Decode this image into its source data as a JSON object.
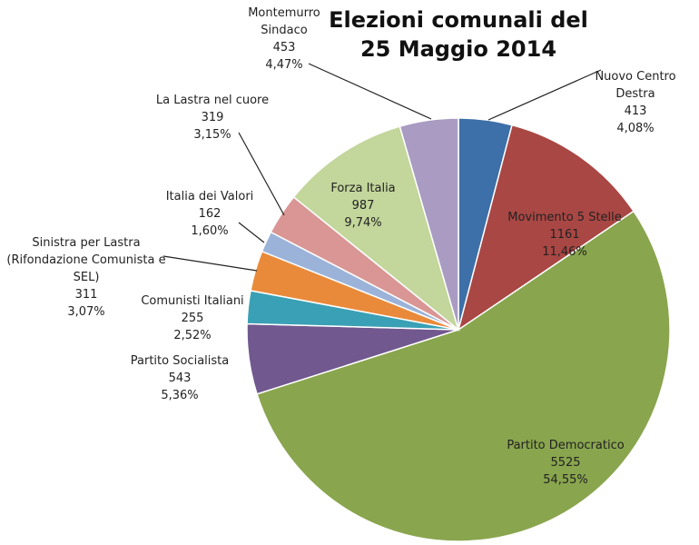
{
  "chart_data": {
    "type": "pie",
    "title": [
      "Elezioni  comunali del",
      "25 Maggio 2014"
    ],
    "start": "12 o'clock, clockwise",
    "slices": [
      {
        "label": [
          "Nuovo Centro",
          "Destra"
        ],
        "value": 413,
        "percent": "4,08%",
        "color": "#3D6FA8"
      },
      {
        "label": [
          "Movimento 5 Stelle"
        ],
        "value": 1161,
        "percent": "11,46%",
        "color": "#A94744"
      },
      {
        "label": [
          "Partito Democratico"
        ],
        "value": 5525,
        "percent": "54,55%",
        "color": "#89A54E"
      },
      {
        "label": [
          "Partito Socialista"
        ],
        "value": 543,
        "percent": "5,36%",
        "color": "#71588F"
      },
      {
        "label": [
          "Comunisti Italiani"
        ],
        "value": 255,
        "percent": "2,52%",
        "color": "#3AA0B5"
      },
      {
        "label": [
          "Sinistra per Lastra",
          "(Rifondazione Comunista  e",
          "SEL)"
        ],
        "value": 311,
        "percent": "3,07%",
        "color": "#E98A3B"
      },
      {
        "label": [
          "Italia dei Valori"
        ],
        "value": 162,
        "percent": "1,60%",
        "color": "#9BB3D9"
      },
      {
        "label": [
          "La Lastra nel cuore"
        ],
        "value": 319,
        "percent": "3,15%",
        "color": "#D99694"
      },
      {
        "label": [
          "Forza Italia"
        ],
        "value": 987,
        "percent": "9,74%",
        "color": "#C3D69B"
      },
      {
        "label": [
          "Montemurro",
          "Sindaco"
        ],
        "value": 453,
        "percent": "4,47%",
        "color": "#A99BC2"
      }
    ]
  }
}
